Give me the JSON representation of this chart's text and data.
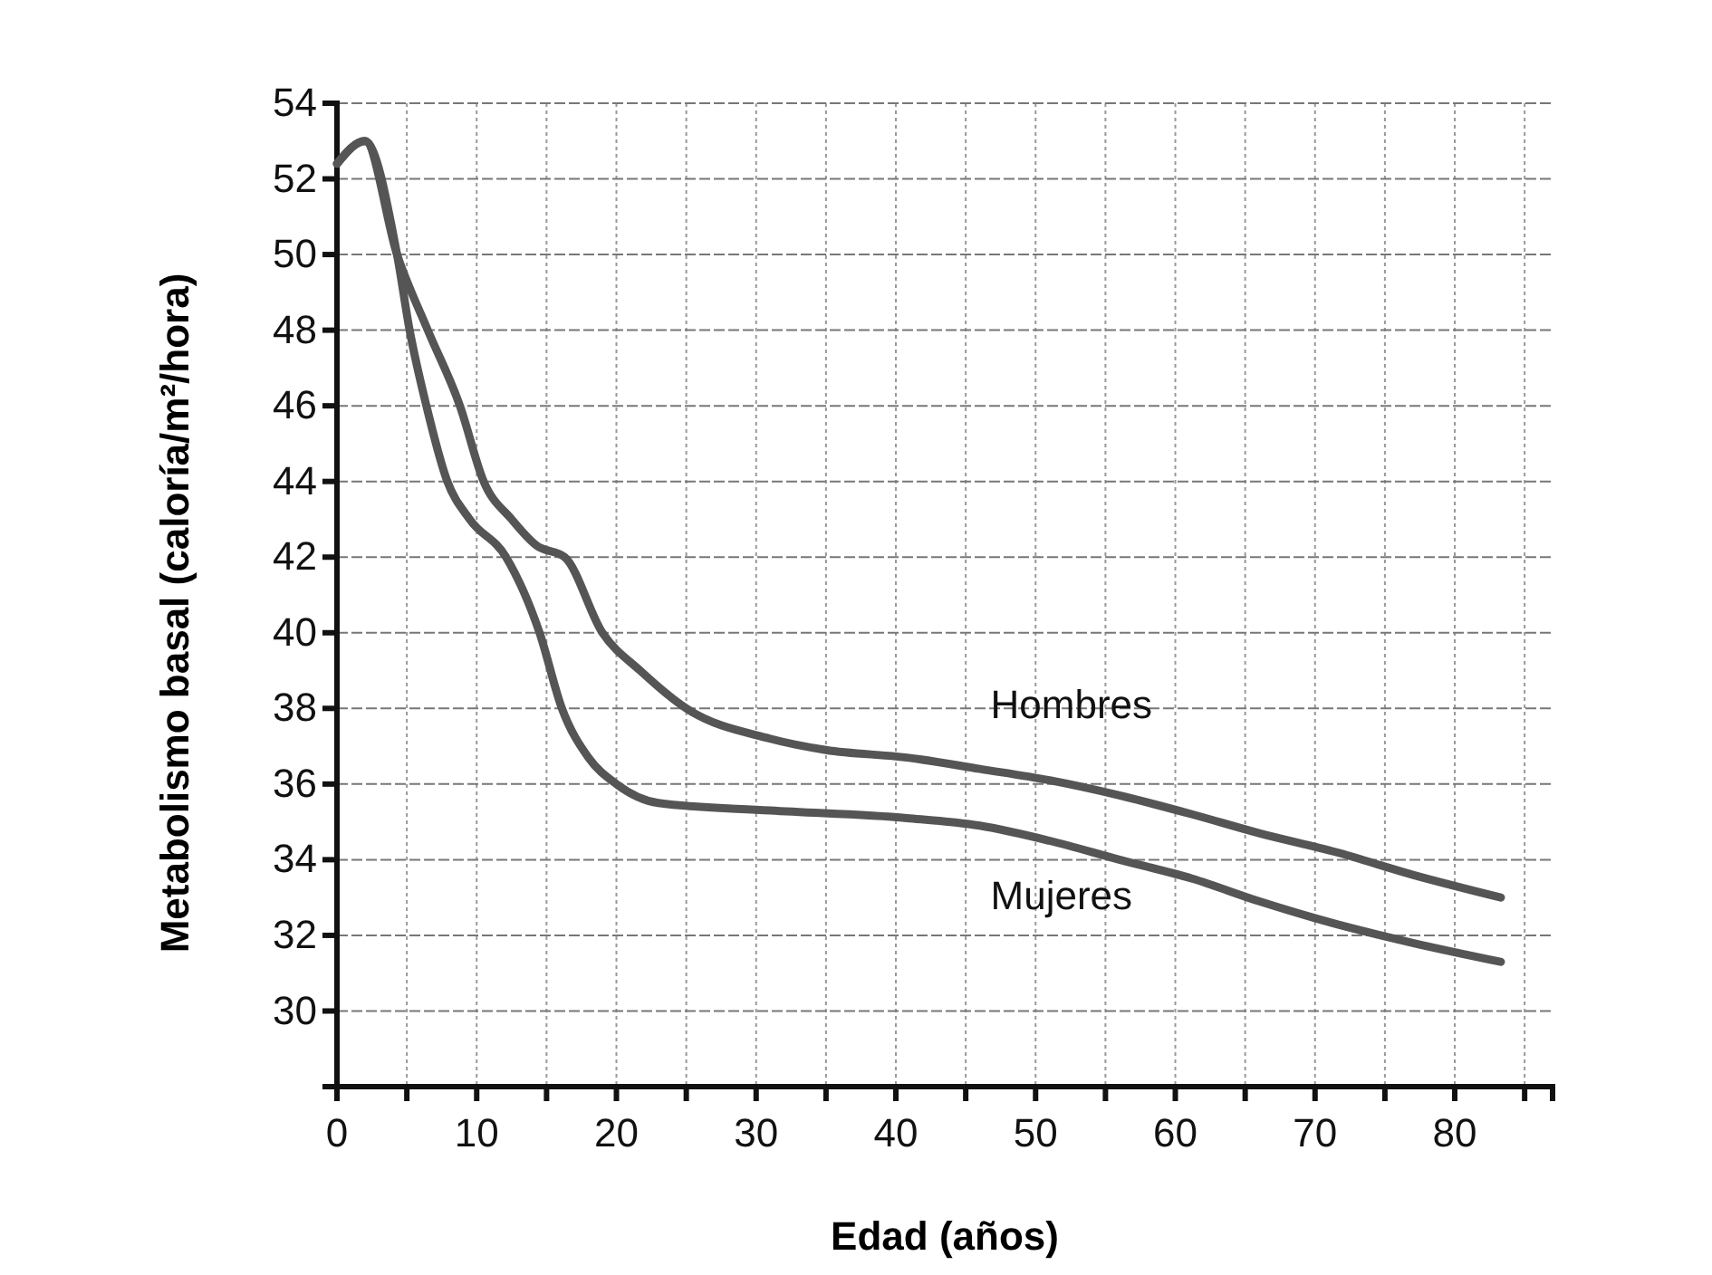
{
  "chart_data": {
    "type": "line",
    "xlabel": "Edad (años)",
    "ylabel": "Metabolismo basal (caloría/m²/hora)",
    "xlim": [
      0,
      87
    ],
    "ylim": [
      28,
      54
    ],
    "xticks": [
      0,
      {
        "value": 5,
        "label": null
      },
      10,
      {
        "value": 15,
        "label": null
      },
      20,
      {
        "value": 25,
        "label": null
      },
      30,
      {
        "value": 35,
        "label": null
      },
      40,
      {
        "value": 45,
        "label": null
      },
      50,
      {
        "value": 55,
        "label": null
      },
      60,
      {
        "value": 65,
        "label": null
      },
      70,
      {
        "value": 75,
        "label": null
      },
      80,
      {
        "value": 85,
        "label": null
      }
    ],
    "yticks": [
      30,
      32,
      34,
      36,
      38,
      40,
      42,
      44,
      46,
      48,
      50,
      52,
      54
    ],
    "grid": true,
    "line_style": "solid",
    "series": [
      {
        "name": "Hombres",
        "color": "#555555",
        "x": [
          0,
          2,
          4.3,
          6.5,
          8.8,
          10.5,
          12.5,
          14.3,
          16.3,
          19,
          21.7,
          25,
          31,
          35,
          40.8,
          46,
          51,
          56,
          61.2,
          66,
          71.5,
          77,
          83.3
        ],
        "values": [
          52.4,
          53,
          50,
          48,
          46,
          44,
          43,
          42.3,
          42,
          40,
          39,
          38,
          37.2,
          36.9,
          36.7,
          36.4,
          36.1,
          35.7,
          35.2,
          34.7,
          34.2,
          33.6,
          33
        ]
      },
      {
        "name": "Mujeres",
        "color": "#555555",
        "x": [
          0,
          2,
          4.3,
          5.2,
          6.4,
          7.9,
          9.5,
          12.1,
          14.5,
          16.1,
          18,
          20,
          23,
          31,
          40.8,
          46,
          51,
          56,
          61.2,
          66,
          71.5,
          77,
          83.3
        ],
        "values": [
          52.4,
          53,
          50,
          48,
          46,
          44,
          43,
          42,
          40,
          38,
          36.7,
          36,
          35.5,
          35.3,
          35.1,
          34.9,
          34.5,
          34,
          33.5,
          32.9,
          32.3,
          31.8,
          31.3
        ]
      }
    ]
  }
}
